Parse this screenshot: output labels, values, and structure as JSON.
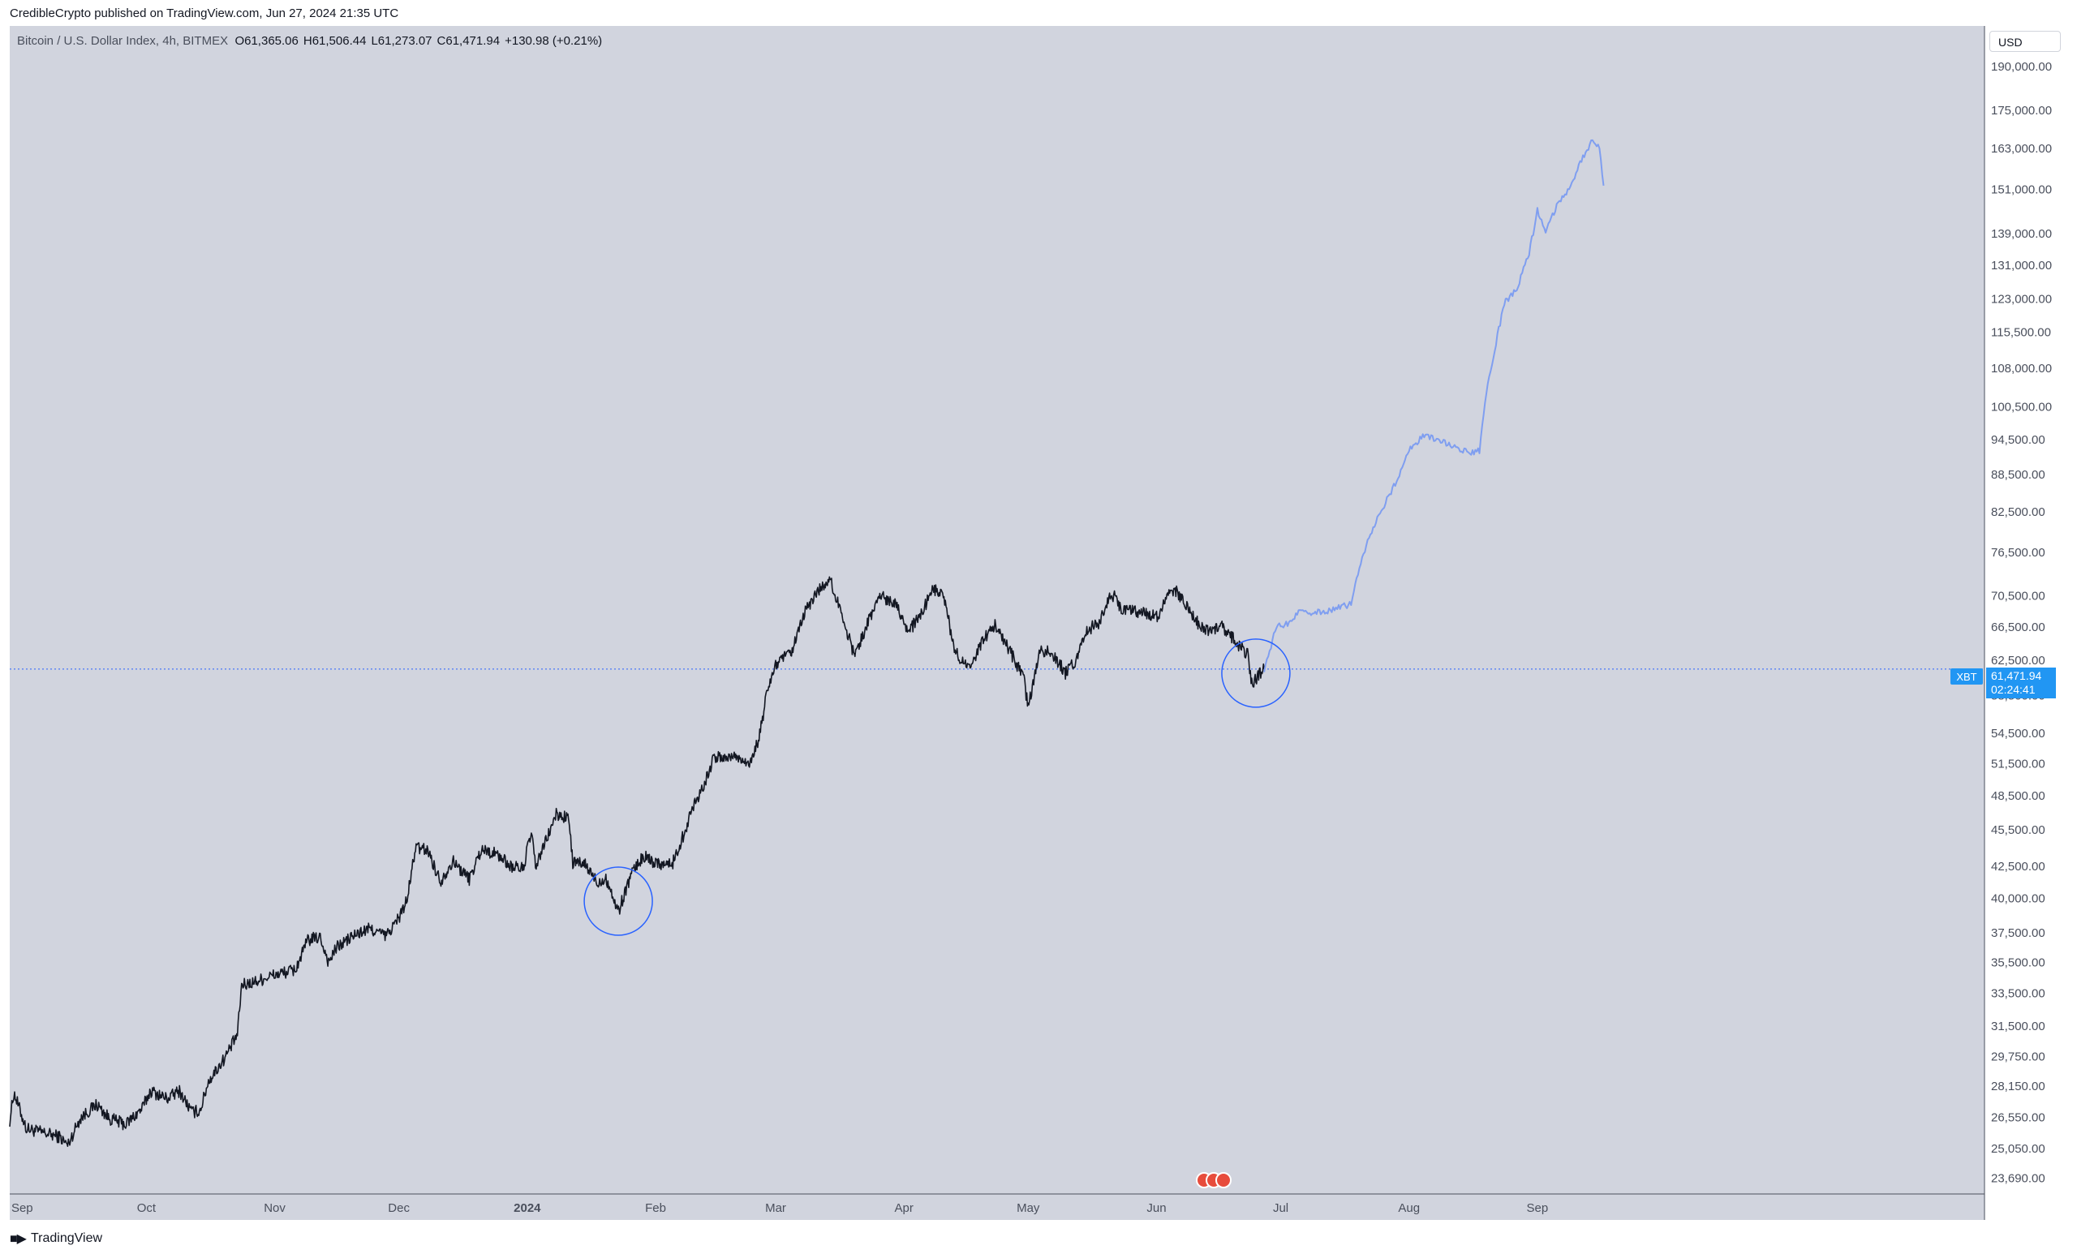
{
  "header": {
    "publisher_line": "CredibleCrypto published on TradingView.com, Jun 27, 2024 21:35 UTC"
  },
  "legend": {
    "symbol": "Bitcoin / U.S. Dollar Index, 4h, BITMEX",
    "o_label": "O",
    "o_value": "61,365.06",
    "h_label": "H",
    "h_value": "61,506.44",
    "l_label": "L",
    "l_value": "61,273.07",
    "c_label": "C",
    "c_value": "61,471.94",
    "change": "+130.98 (+0.21%)"
  },
  "currency": "USD",
  "price_tag": {
    "symbol": "XBT",
    "price": "61,471.94",
    "countdown": "02:24:41"
  },
  "footer": {
    "brand": "TradingView"
  },
  "colors": {
    "plot_bg": "#d1d4de",
    "price_line": "#131722",
    "projection_line": "#7f9ef0",
    "marker_circle": "#2962ff",
    "price_tag_bg": "#2196f3"
  },
  "chart_data": {
    "type": "line",
    "x_axis": {
      "tick_labels": [
        "Sep",
        "Oct",
        "Nov",
        "Dec",
        "2024",
        "Feb",
        "Mar",
        "Apr",
        "May",
        "Jun",
        "Jul",
        "Aug",
        "Sep"
      ],
      "tick_dates": [
        "2023-09-01",
        "2023-10-01",
        "2023-11-01",
        "2023-12-01",
        "2024-01-01",
        "2024-02-01",
        "2024-03-01",
        "2024-04-01",
        "2024-05-01",
        "2024-06-01",
        "2024-07-01",
        "2024-08-01",
        "2024-09-01"
      ],
      "range": [
        "2023-08-29",
        "2024-12-18"
      ]
    },
    "y_axis": {
      "scale": "log",
      "range": [
        23000,
        205000
      ],
      "tick_labels": [
        "190,000.00",
        "175,000.00",
        "163,000.00",
        "151,000.00",
        "139,000.00",
        "131,000.00",
        "123,000.00",
        "115,500.00",
        "108,000.00",
        "100,500.00",
        "94,500.00",
        "88,500.00",
        "82,500.00",
        "76,500.00",
        "70,500.00",
        "66,500.00",
        "62,500.00",
        "58,500.00",
        "54,500.00",
        "51,500.00",
        "48,500.00",
        "45,500.00",
        "42,500.00",
        "40,000.00",
        "37,500.00",
        "35,500.00",
        "33,500.00",
        "31,500.00",
        "29,750.00",
        "28,150.00",
        "26,550.00",
        "25,050.00",
        "23,690.00"
      ],
      "tick_values": [
        190000,
        175000,
        163000,
        151000,
        139000,
        131000,
        123000,
        115500,
        108000,
        100500,
        94500,
        88500,
        82500,
        76500,
        70500,
        66500,
        62500,
        58500,
        54500,
        51500,
        48500,
        45500,
        42500,
        40000,
        37500,
        35500,
        33500,
        31500,
        29750,
        28150,
        26550,
        25050,
        23690
      ]
    },
    "series": [
      {
        "color": "#131722",
        "points": [
          [
            "2023-08-29",
            26400
          ],
          [
            "2023-08-30",
            27800
          ],
          [
            "2023-09-02",
            26000
          ],
          [
            "2023-09-06",
            25800
          ],
          [
            "2023-09-10",
            25600
          ],
          [
            "2023-09-12",
            25200
          ],
          [
            "2023-09-15",
            26500
          ],
          [
            "2023-09-19",
            27200
          ],
          [
            "2023-09-22",
            26500
          ],
          [
            "2023-09-26",
            26200
          ],
          [
            "2023-09-30",
            27000
          ],
          [
            "2023-10-02",
            27900
          ],
          [
            "2023-10-06",
            27500
          ],
          [
            "2023-10-09",
            27900
          ],
          [
            "2023-10-12",
            26800
          ],
          [
            "2023-10-14",
            26900
          ],
          [
            "2023-10-16",
            28400
          ],
          [
            "2023-10-20",
            29700
          ],
          [
            "2023-10-23",
            31000
          ],
          [
            "2023-10-24",
            34000
          ],
          [
            "2023-10-27",
            34200
          ],
          [
            "2023-10-31",
            34600
          ],
          [
            "2023-11-03",
            34800
          ],
          [
            "2023-11-06",
            35000
          ],
          [
            "2023-11-09",
            37000
          ],
          [
            "2023-11-12",
            37200
          ],
          [
            "2023-11-14",
            35500
          ],
          [
            "2023-11-16",
            36500
          ],
          [
            "2023-11-20",
            37300
          ],
          [
            "2023-11-24",
            37800
          ],
          [
            "2023-11-28",
            37300
          ],
          [
            "2023-12-01",
            38600
          ],
          [
            "2023-12-03",
            39900
          ],
          [
            "2023-12-05",
            44000
          ],
          [
            "2023-12-08",
            43800
          ],
          [
            "2023-12-11",
            41300
          ],
          [
            "2023-12-14",
            42900
          ],
          [
            "2023-12-18",
            41500
          ],
          [
            "2023-12-21",
            43900
          ],
          [
            "2023-12-25",
            43400
          ],
          [
            "2023-12-28",
            42500
          ],
          [
            "2023-12-31",
            42300
          ],
          [
            "2024-01-02",
            45300
          ],
          [
            "2024-01-03",
            42400
          ],
          [
            "2024-01-08",
            46800
          ],
          [
            "2024-01-11",
            46500
          ],
          [
            "2024-01-12",
            42800
          ],
          [
            "2024-01-15",
            42600
          ],
          [
            "2024-01-18",
            41200
          ],
          [
            "2024-01-20",
            41600
          ],
          [
            "2024-01-23",
            39000
          ],
          [
            "2024-01-26",
            41800
          ],
          [
            "2024-01-29",
            43300
          ],
          [
            "2024-02-01",
            42800
          ],
          [
            "2024-02-05",
            42600
          ],
          [
            "2024-02-08",
            45300
          ],
          [
            "2024-02-10",
            47500
          ],
          [
            "2024-02-13",
            49800
          ],
          [
            "2024-02-15",
            52000
          ],
          [
            "2024-02-20",
            52200
          ],
          [
            "2024-02-24",
            51600
          ],
          [
            "2024-02-26",
            54000
          ],
          [
            "2024-02-28",
            59000
          ],
          [
            "2024-03-01",
            62000
          ],
          [
            "2024-03-05",
            63500
          ],
          [
            "2024-03-08",
            68300
          ],
          [
            "2024-03-11",
            71000
          ],
          [
            "2024-03-14",
            72800
          ],
          [
            "2024-03-17",
            68200
          ],
          [
            "2024-03-20",
            63000
          ],
          [
            "2024-03-22",
            65500
          ],
          [
            "2024-03-26",
            70500
          ],
          [
            "2024-03-30",
            69700
          ],
          [
            "2024-04-02",
            66000
          ],
          [
            "2024-04-05",
            67800
          ],
          [
            "2024-04-08",
            71600
          ],
          [
            "2024-04-11",
            70000
          ],
          [
            "2024-04-13",
            63800
          ],
          [
            "2024-04-17",
            61300
          ],
          [
            "2024-04-20",
            64900
          ],
          [
            "2024-04-23",
            66800
          ],
          [
            "2024-04-27",
            63200
          ],
          [
            "2024-04-30",
            60200
          ],
          [
            "2024-05-01",
            57200
          ],
          [
            "2024-05-04",
            63800
          ],
          [
            "2024-05-07",
            63200
          ],
          [
            "2024-05-10",
            61000
          ],
          [
            "2024-05-13",
            62800
          ],
          [
            "2024-05-15",
            66000
          ],
          [
            "2024-05-18",
            67000
          ],
          [
            "2024-05-21",
            71000
          ],
          [
            "2024-05-24",
            68600
          ],
          [
            "2024-05-28",
            68500
          ],
          [
            "2024-06-01",
            67800
          ],
          [
            "2024-06-04",
            70500
          ],
          [
            "2024-06-06",
            71000
          ],
          [
            "2024-06-08",
            69300
          ],
          [
            "2024-06-11",
            67000
          ],
          [
            "2024-06-14",
            66000
          ],
          [
            "2024-06-17",
            66500
          ],
          [
            "2024-06-20",
            64800
          ],
          [
            "2024-06-23",
            63200
          ],
          [
            "2024-06-24",
            59800
          ],
          [
            "2024-06-26",
            61000
          ],
          [
            "2024-06-27",
            61472
          ]
        ]
      },
      {
        "color": "#7f9ef0",
        "points": [
          [
            "2024-06-27",
            61472
          ],
          [
            "2024-06-30",
            66500
          ],
          [
            "2024-07-03",
            67000
          ],
          [
            "2024-07-06",
            68800
          ],
          [
            "2024-07-09",
            68300
          ],
          [
            "2024-07-12",
            68500
          ],
          [
            "2024-07-15",
            68900
          ],
          [
            "2024-07-18",
            69500
          ],
          [
            "2024-07-21",
            76500
          ],
          [
            "2024-07-25",
            82500
          ],
          [
            "2024-07-28",
            86000
          ],
          [
            "2024-08-01",
            92500
          ],
          [
            "2024-08-04",
            95000
          ],
          [
            "2024-08-08",
            94500
          ],
          [
            "2024-08-12",
            93200
          ],
          [
            "2024-08-16",
            92000
          ],
          [
            "2024-08-18",
            92500
          ],
          [
            "2024-08-20",
            105000
          ],
          [
            "2024-08-24",
            122000
          ],
          [
            "2024-08-27",
            125000
          ],
          [
            "2024-08-30",
            134000
          ],
          [
            "2024-09-01",
            145000
          ],
          [
            "2024-09-03",
            140000
          ],
          [
            "2024-09-06",
            147000
          ],
          [
            "2024-09-09",
            152000
          ],
          [
            "2024-09-11",
            158000
          ],
          [
            "2024-09-14",
            165000
          ],
          [
            "2024-09-16",
            163000
          ],
          [
            "2024-09-17",
            152000
          ]
        ]
      }
    ],
    "markers": [
      {
        "type": "circle",
        "date": "2024-01-23",
        "price": 39800
      },
      {
        "type": "circle",
        "date": "2024-06-25",
        "price": 61000
      }
    ],
    "last_price": 61471.94
  }
}
